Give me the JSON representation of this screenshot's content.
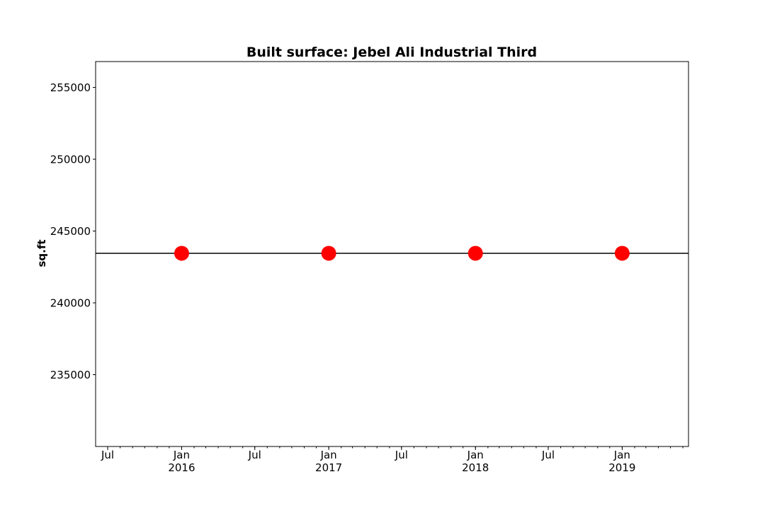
{
  "chart_data": {
    "type": "scatter",
    "title": "Built surface: Jebel Ali Industrial Third",
    "xlabel": "",
    "ylabel": "sq.ft",
    "xlim": [
      "2015-06-01",
      "2019-06-15"
    ],
    "ylim": [
      230000,
      256800
    ],
    "yticks": [
      235000,
      240000,
      245000,
      250000,
      255000
    ],
    "ytick_labels": [
      "235000",
      "240000",
      "245000",
      "250000",
      "255000"
    ],
    "xticks": [
      {
        "date": "2015-07-01",
        "label": "Jul"
      },
      {
        "date": "2016-01-01",
        "label": "Jan",
        "sublabel": "2016"
      },
      {
        "date": "2016-07-01",
        "label": "Jul"
      },
      {
        "date": "2017-01-01",
        "label": "Jan",
        "sublabel": "2017"
      },
      {
        "date": "2017-07-01",
        "label": "Jul"
      },
      {
        "date": "2018-01-01",
        "label": "Jan",
        "sublabel": "2018"
      },
      {
        "date": "2018-07-01",
        "label": "Jul"
      },
      {
        "date": "2019-01-01",
        "label": "Jan",
        "sublabel": "2019"
      }
    ],
    "series": [
      {
        "type": "scatter",
        "color": "#ff0000",
        "points": [
          {
            "x": "2016-01-01",
            "y": 243450
          },
          {
            "x": "2017-01-01",
            "y": 243450
          },
          {
            "x": "2018-01-01",
            "y": 243450
          },
          {
            "x": "2019-01-01",
            "y": 243450
          }
        ]
      },
      {
        "type": "hline",
        "color": "#000000",
        "y": 243450
      }
    ],
    "grid": false,
    "legend": "none"
  }
}
